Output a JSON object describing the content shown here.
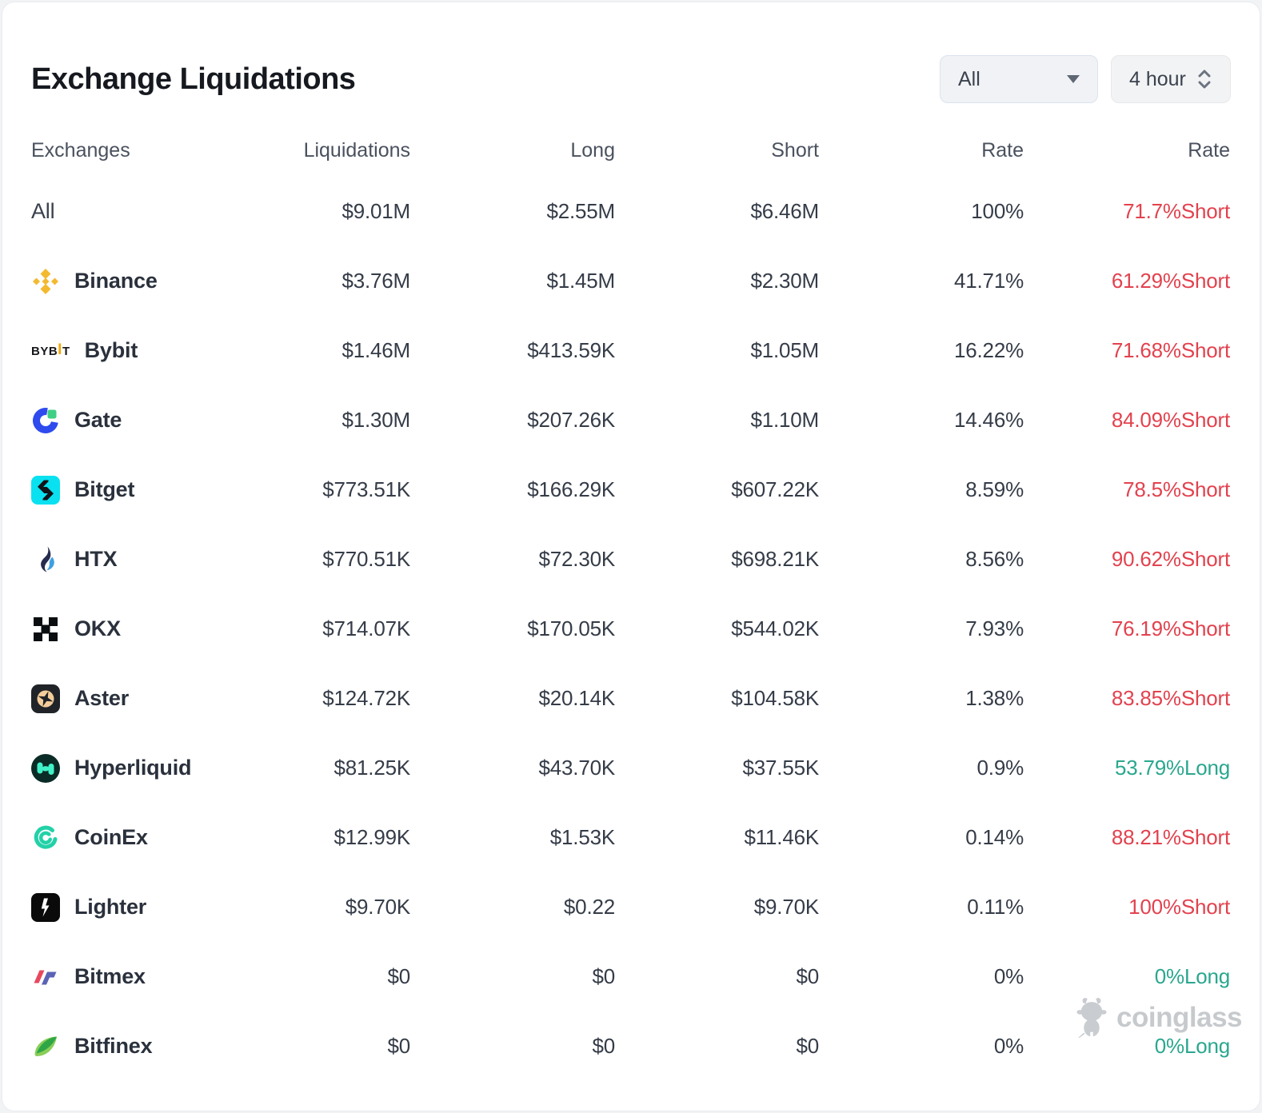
{
  "header": {
    "title": "Exchange Liquidations"
  },
  "controls": {
    "exchange_filter": {
      "value": "All"
    },
    "timeframe": {
      "value": "4 hour"
    }
  },
  "colors": {
    "short_rate": "#e2424e",
    "long_rate": "#2aa78e"
  },
  "table": {
    "columns": [
      "Exchanges",
      "Liquidations",
      "Long",
      "Short",
      "Rate",
      "Rate"
    ],
    "rows": [
      {
        "exchange": "All",
        "icon": null,
        "emphasis": false,
        "liquidations": "$9.01M",
        "long": "$2.55M",
        "short": "$6.46M",
        "rate": "100%",
        "rate_long_short": {
          "label": "71.7%Short",
          "side": "short"
        }
      },
      {
        "exchange": "Binance",
        "icon": "binance-icon",
        "emphasis": true,
        "liquidations": "$3.76M",
        "long": "$1.45M",
        "short": "$2.30M",
        "rate": "41.71%",
        "rate_long_short": {
          "label": "61.29%Short",
          "side": "short"
        }
      },
      {
        "exchange": "Bybit",
        "icon": "bybit-icon",
        "emphasis": true,
        "liquidations": "$1.46M",
        "long": "$413.59K",
        "short": "$1.05M",
        "rate": "16.22%",
        "rate_long_short": {
          "label": "71.68%Short",
          "side": "short"
        }
      },
      {
        "exchange": "Gate",
        "icon": "gate-icon",
        "emphasis": true,
        "liquidations": "$1.30M",
        "long": "$207.26K",
        "short": "$1.10M",
        "rate": "14.46%",
        "rate_long_short": {
          "label": "84.09%Short",
          "side": "short"
        }
      },
      {
        "exchange": "Bitget",
        "icon": "bitget-icon",
        "emphasis": true,
        "liquidations": "$773.51K",
        "long": "$166.29K",
        "short": "$607.22K",
        "rate": "8.59%",
        "rate_long_short": {
          "label": "78.5%Short",
          "side": "short"
        }
      },
      {
        "exchange": "HTX",
        "icon": "htx-icon",
        "emphasis": true,
        "liquidations": "$770.51K",
        "long": "$72.30K",
        "short": "$698.21K",
        "rate": "8.56%",
        "rate_long_short": {
          "label": "90.62%Short",
          "side": "short"
        }
      },
      {
        "exchange": "OKX",
        "icon": "okx-icon",
        "emphasis": true,
        "liquidations": "$714.07K",
        "long": "$170.05K",
        "short": "$544.02K",
        "rate": "7.93%",
        "rate_long_short": {
          "label": "76.19%Short",
          "side": "short"
        }
      },
      {
        "exchange": "Aster",
        "icon": "aster-icon",
        "emphasis": true,
        "liquidations": "$124.72K",
        "long": "$20.14K",
        "short": "$104.58K",
        "rate": "1.38%",
        "rate_long_short": {
          "label": "83.85%Short",
          "side": "short"
        }
      },
      {
        "exchange": "Hyperliquid",
        "icon": "hyperliquid-icon",
        "emphasis": true,
        "liquidations": "$81.25K",
        "long": "$43.70K",
        "short": "$37.55K",
        "rate": "0.9%",
        "rate_long_short": {
          "label": "53.79%Long",
          "side": "long"
        }
      },
      {
        "exchange": "CoinEx",
        "icon": "coinex-icon",
        "emphasis": true,
        "liquidations": "$12.99K",
        "long": "$1.53K",
        "short": "$11.46K",
        "rate": "0.14%",
        "rate_long_short": {
          "label": "88.21%Short",
          "side": "short"
        }
      },
      {
        "exchange": "Lighter",
        "icon": "lighter-icon",
        "emphasis": true,
        "liquidations": "$9.70K",
        "long": "$0.22",
        "short": "$9.70K",
        "rate": "0.11%",
        "rate_long_short": {
          "label": "100%Short",
          "side": "short"
        }
      },
      {
        "exchange": "Bitmex",
        "icon": "bitmex-icon",
        "emphasis": true,
        "liquidations": "$0",
        "long": "$0",
        "short": "$0",
        "rate": "0%",
        "rate_long_short": {
          "label": "0%Long",
          "side": "long"
        }
      },
      {
        "exchange": "Bitfinex",
        "icon": "bitfinex-icon",
        "emphasis": true,
        "liquidations": "$0",
        "long": "$0",
        "short": "$0",
        "rate": "0%",
        "rate_long_short": {
          "label": "0%Long",
          "side": "long"
        }
      }
    ]
  },
  "bybit_logo_text": {
    "pre": "BYB",
    "i": "I",
    "post": "T"
  },
  "watermark": {
    "text": "coinglass"
  }
}
